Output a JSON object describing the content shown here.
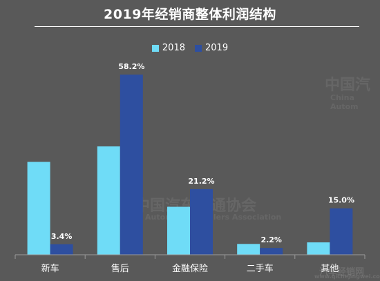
{
  "chart_data": {
    "type": "bar",
    "title": "2019年经销商整体利润结构",
    "categories": [
      "新车",
      "售后",
      "金融保险",
      "二手车",
      "其他"
    ],
    "series": [
      {
        "name": "2018",
        "values": [
          30.0,
          35.0,
          15.5,
          3.5,
          4.0
        ],
        "labels": [
          "",
          "",
          "",
          "",
          ""
        ]
      },
      {
        "name": "2019",
        "values": [
          3.4,
          58.2,
          21.2,
          2.2,
          15.0
        ],
        "labels": [
          "3.4%",
          "58.2%",
          "21.2%",
          "2.2%",
          "15.0%"
        ]
      }
    ],
    "colors": {
      "2018": "#6fdcf7",
      "2019": "#2e4fa0"
    },
    "ylim": [
      0,
      62
    ],
    "grid": false,
    "legend": "top-center"
  },
  "colors": {
    "background": "#595959",
    "text": "#ffffff",
    "axis": "#9a9a9a"
  },
  "watermarks": [
    "中国汽",
    "China Autom",
    "中国汽车流通协会",
    "Automobile Dealers Association",
    "汽车经销网",
    "www.qichejingwei.com"
  ]
}
